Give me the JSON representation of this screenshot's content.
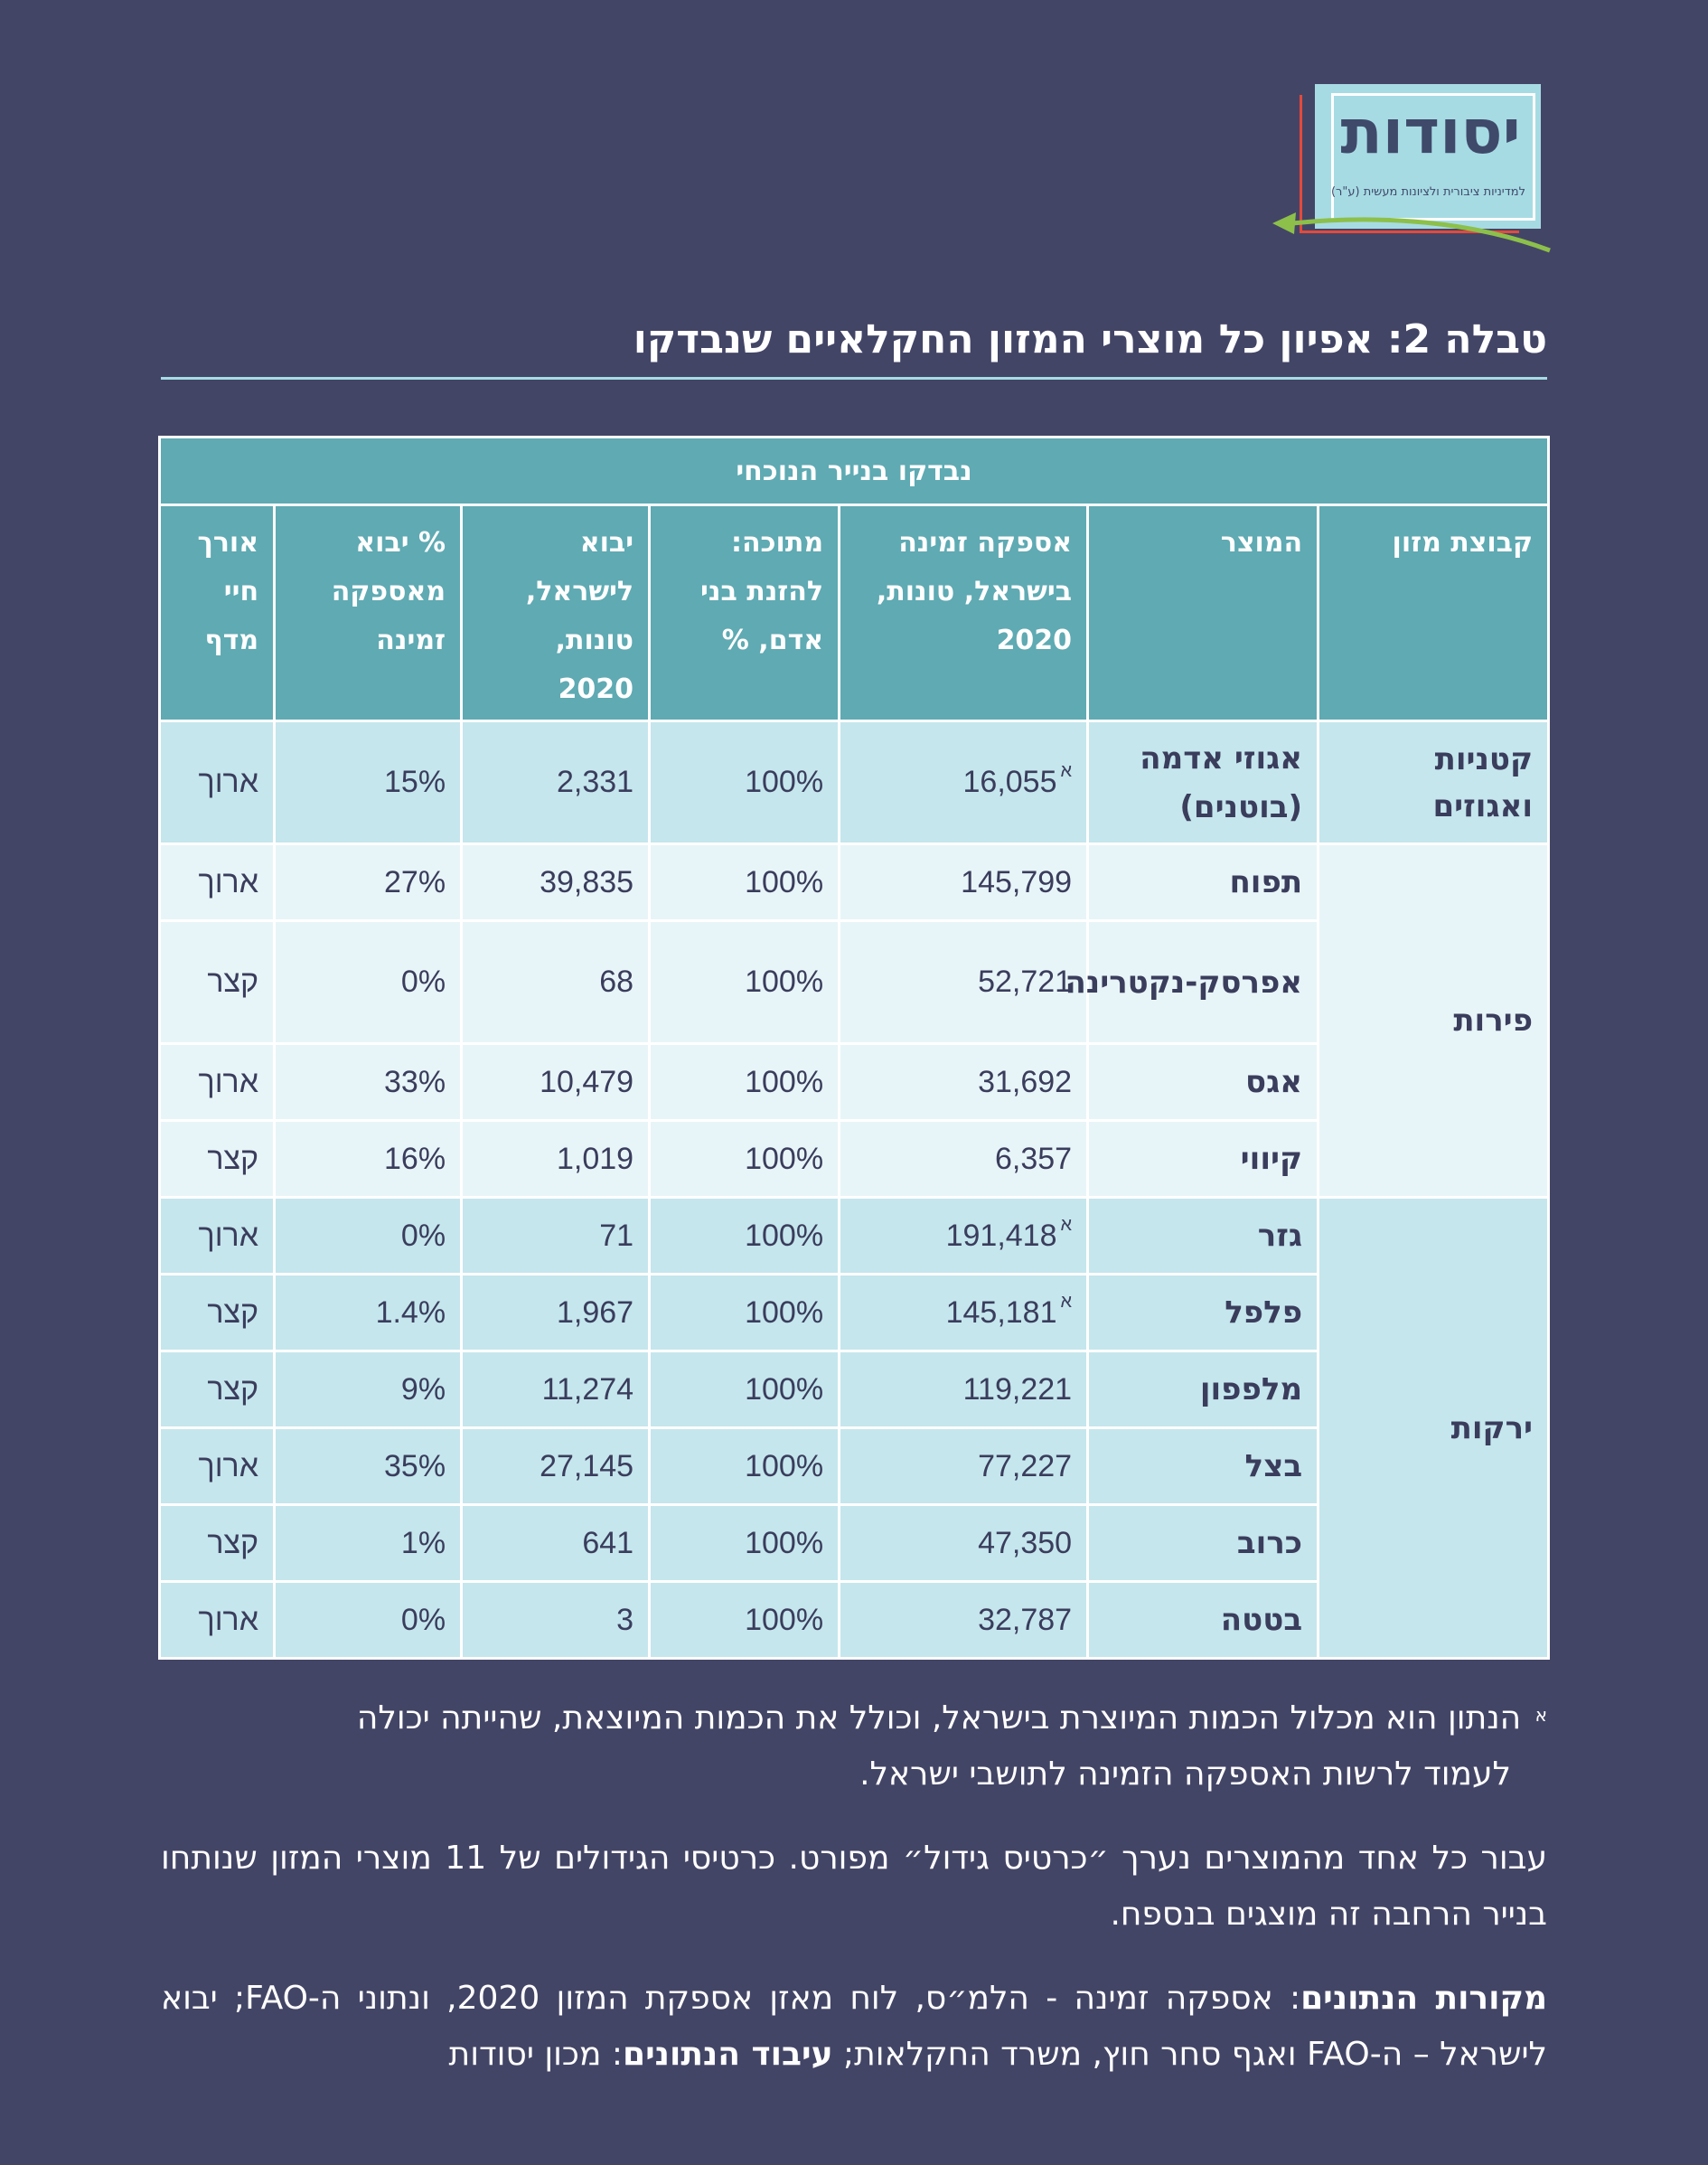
{
  "logo": {
    "name": "יסודות",
    "tagline": "למדיניות ציבורית ולציונות מעשית (ע\"ר)"
  },
  "title": "טבלה 2: אפיון כל מוצרי המזון החקלאיים שנבדקו",
  "table": {
    "group_header": "נבדקו בנייר הנוכחי",
    "columns": [
      "קבוצת מזון",
      "המוצר",
      "אספקה זמינה בישראל, טונות, 2020",
      "מתוכה: להזנת בני אדם, %",
      "יבוא לישראל, טונות, 2020",
      "% יבוא מאספקה זמינה",
      "אורך חיי מדף"
    ],
    "groups": [
      {
        "name": "קטניות ואגוזים",
        "rows": [
          {
            "product": "אגוזי אדמה (בוטנים)",
            "supply": "16,055",
            "mark": "א",
            "human": "100%",
            "import": "2,331",
            "import_pct": "15%",
            "shelf": "ארוך"
          }
        ]
      },
      {
        "name": "פירות",
        "rows": [
          {
            "product": "תפוח",
            "supply": "145,799",
            "mark": "",
            "human": "100%",
            "import": "39,835",
            "import_pct": "27%",
            "shelf": "ארוך"
          },
          {
            "product": "אפרסק-נקטרינה",
            "supply": "52,721",
            "mark": "",
            "human": "100%",
            "import": "68",
            "import_pct": "0%",
            "shelf": "קצר"
          },
          {
            "product": "אגס",
            "supply": "31,692",
            "mark": "",
            "human": "100%",
            "import": "10,479",
            "import_pct": "33%",
            "shelf": "ארוך"
          },
          {
            "product": "קיווי",
            "supply": "6,357",
            "mark": "",
            "human": "100%",
            "import": "1,019",
            "import_pct": "16%",
            "shelf": "קצר"
          }
        ]
      },
      {
        "name": "ירקות",
        "rows": [
          {
            "product": "גזר",
            "supply": "191,418",
            "mark": "א",
            "human": "100%",
            "import": "71",
            "import_pct": "0%",
            "shelf": "ארוך"
          },
          {
            "product": "פלפל",
            "supply": "145,181",
            "mark": "א",
            "human": "100%",
            "import": "1,967",
            "import_pct": "1.4%",
            "shelf": "קצר"
          },
          {
            "product": "מלפפון",
            "supply": "119,221",
            "mark": "",
            "human": "100%",
            "import": "11,274",
            "import_pct": "9%",
            "shelf": "קצר"
          },
          {
            "product": "בצל",
            "supply": "77,227",
            "mark": "",
            "human": "100%",
            "import": "27,145",
            "import_pct": "35%",
            "shelf": "ארוך"
          },
          {
            "product": "כרוב",
            "supply": "47,350",
            "mark": "",
            "human": "100%",
            "import": "641",
            "import_pct": "1%",
            "shelf": "קצר"
          },
          {
            "product": "בטטה",
            "supply": "32,787",
            "mark": "",
            "human": "100%",
            "import": "3",
            "import_pct": "0%",
            "shelf": "ארוך"
          }
        ]
      }
    ]
  },
  "footnote": {
    "mark": "א",
    "text_line1": "הנתון הוא מכלול הכמות המיוצרת בישראל, וכולל את הכמות המיוצאת, שהייתה יכולה",
    "text_line2": "לעמוד לרשות האספקה הזמינה לתושבי ישראל."
  },
  "paragraph": "עבור כל אחד מהמוצרים נערך ״כרטיס גידול״ מפורט. כרטיסי הגידולים של 11 מוצרי המזון שנותחו בנייר הרחבה זה מוצגים בנספח.",
  "sources": {
    "label1": "מקורות הנתונים",
    "text1": ": אספקה זמינה - הלמ״ס, לוח מאזן אספקת המזון 2020, ונתוני ה-FAO; יבוא לישראל – ה-FAO ואגף סחר חוץ, משרד החקלאות; ",
    "label2": "עיבוד הנתונים",
    "text2": ": מכון יסודות"
  },
  "colors": {
    "background": "#434566",
    "header_teal": "#5faab3",
    "row_mid": "#c5e6ed",
    "row_light": "#e8f5f8",
    "accent_rule": "#a7dbe3"
  }
}
